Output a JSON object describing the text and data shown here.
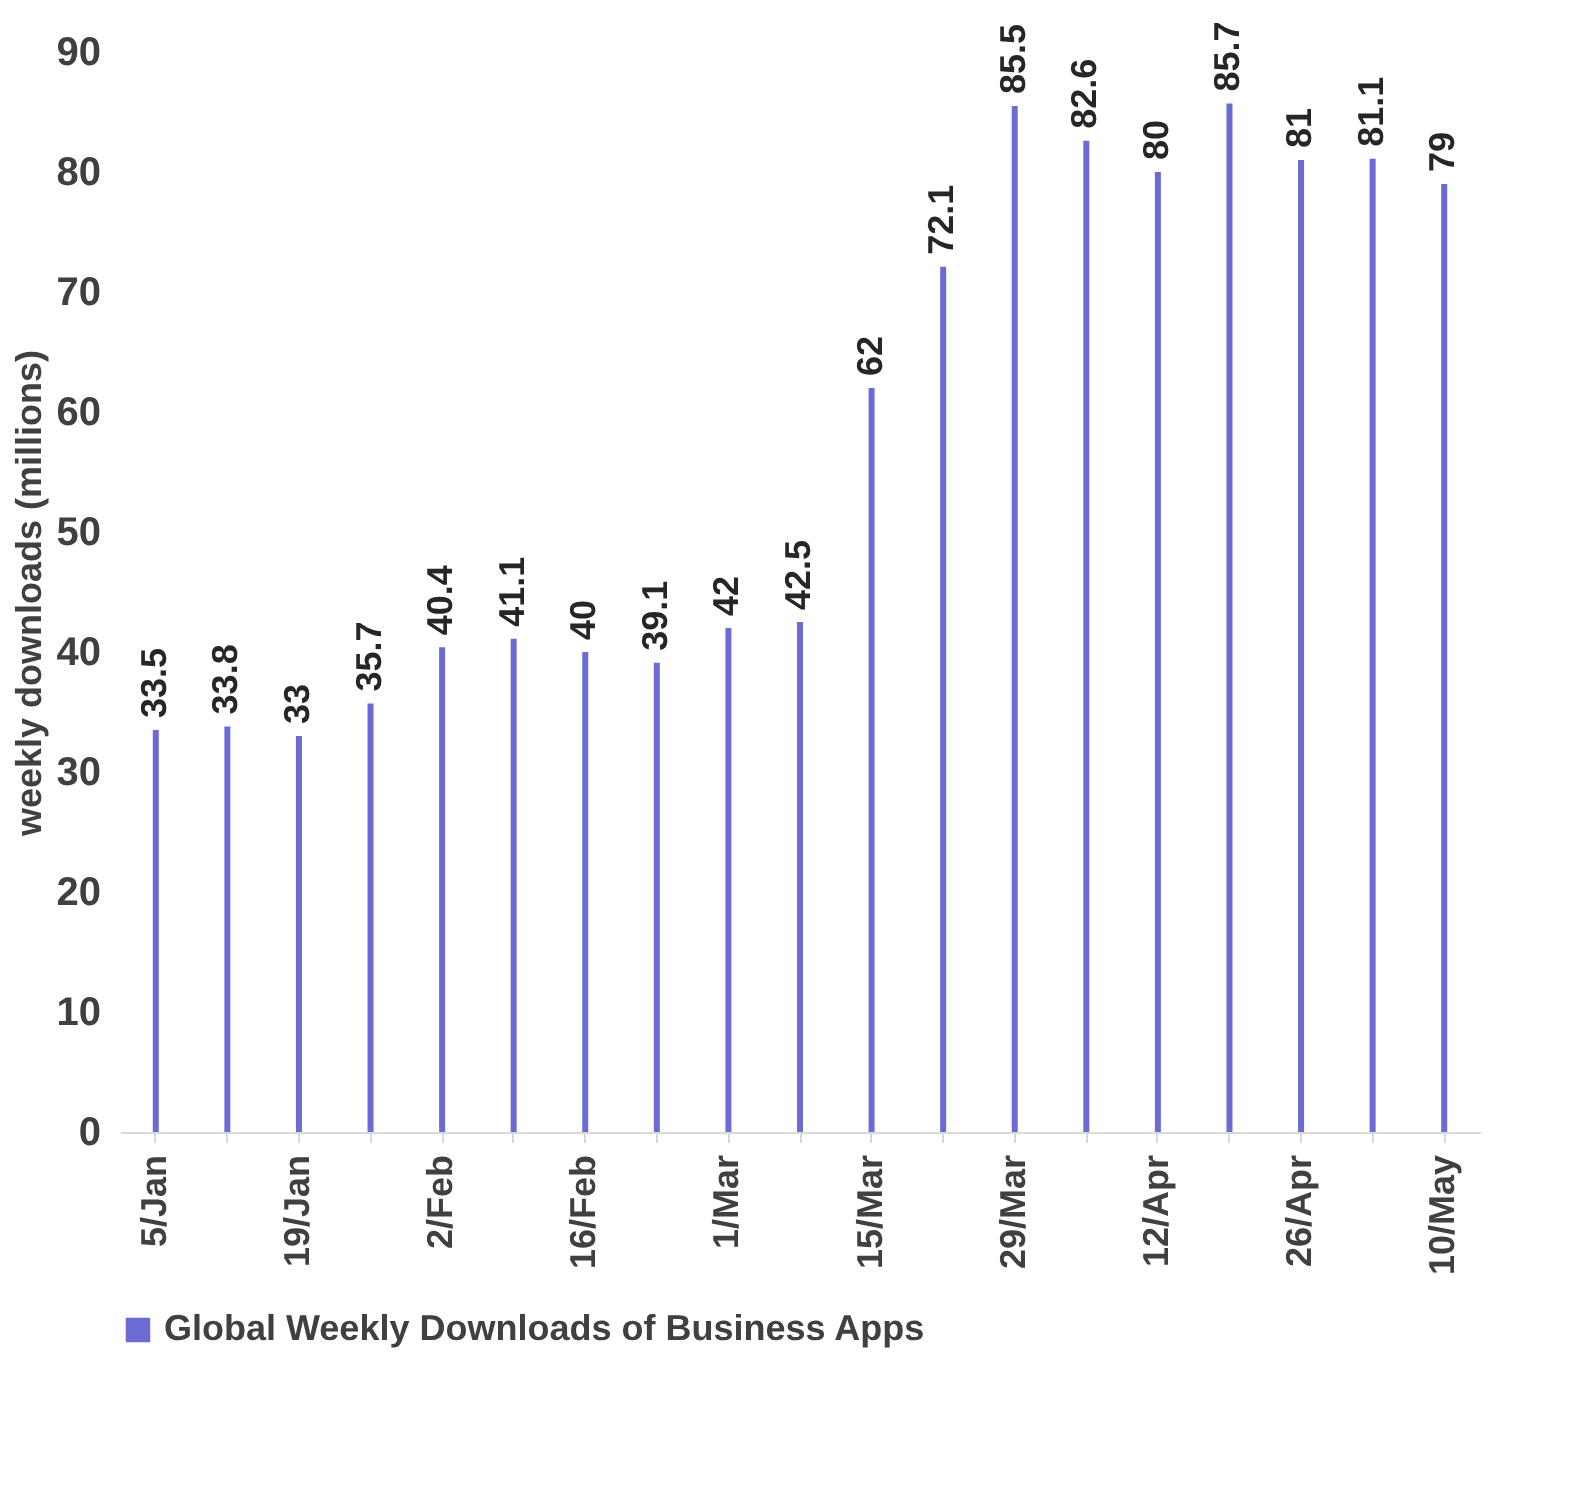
{
  "chart_data": {
    "type": "bar",
    "ylabel": "weekly downloads (millions)",
    "categories": [
      "5/Jan",
      null,
      "19/Jan",
      null,
      "2/Feb",
      null,
      "16/Feb",
      null,
      "1/Mar",
      null,
      "15/Mar",
      null,
      "29/Mar",
      null,
      "12/Apr",
      null,
      "26/Apr",
      null,
      "10/May"
    ],
    "series": [
      {
        "name": "Global Weekly Downloads of Business Apps",
        "color": "#6b6bd6",
        "values": [
          33.5,
          33.8,
          33,
          35.7,
          40.4,
          41.1,
          40,
          39.1,
          42,
          42.5,
          62,
          72.1,
          85.5,
          82.6,
          80,
          85.7,
          81,
          81.1,
          79
        ]
      }
    ],
    "ylim": [
      0,
      90
    ],
    "yticks": [
      0,
      10,
      20,
      30,
      40,
      50,
      60,
      70,
      80,
      90
    ],
    "data_labels": true,
    "legend": "bottom",
    "grid": false
  }
}
